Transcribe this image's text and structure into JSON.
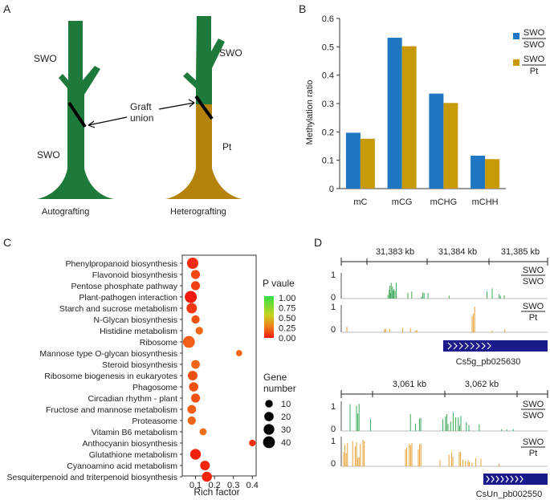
{
  "panels": {
    "a": "A",
    "b": "B",
    "c": "C",
    "d": "D"
  },
  "panel_a": {
    "auto_top_label": "SWO",
    "auto_bottom_label": "SWO",
    "hetero_top_label": "SWO",
    "hetero_bottom_label": "Pt",
    "graft_union_line1": "Graft",
    "graft_union_line2": "union",
    "auto_caption": "Autografting",
    "hetero_caption": "Heterografting"
  },
  "colors": {
    "green": "#1e7a3a",
    "brown": "#b5830c",
    "blue": "#1f77c4",
    "gold": "#c89a0a",
    "red_dot": "#e8441c",
    "navy": "#1a1a8c"
  },
  "chart_data": [
    {
      "type": "bar",
      "ylabel": "Methylation ratio",
      "ylim": [
        0,
        0.6
      ],
      "yticks": [
        "0",
        "0.1",
        "0.2",
        "0.3",
        "0.4",
        "0.5",
        "0.6"
      ],
      "categories": [
        "mC",
        "mCG",
        "mCHG",
        "mCHH"
      ],
      "series": [
        {
          "name_top": "SWO",
          "name_bottom": "SWO",
          "values": [
            0.197,
            0.532,
            0.335,
            0.116
          ]
        },
        {
          "name_top": "SWO",
          "name_bottom": "Pt",
          "values": [
            0.176,
            0.502,
            0.302,
            0.104
          ]
        }
      ]
    },
    {
      "type": "scatter",
      "xlabel": "Rich factor",
      "xlim": [
        0.03,
        0.42
      ],
      "xticks": [
        "0.1",
        "0.2",
        "0.3",
        "0.4"
      ],
      "pathways": [
        {
          "name": "Phenylpropanoid biosynthesis",
          "rich": 0.085,
          "p": 0.04,
          "genes": 35
        },
        {
          "name": "Flavonoid biosynthesis",
          "rich": 0.1,
          "p": 0.12,
          "genes": 18
        },
        {
          "name": "Pentose phosphate pathway",
          "rich": 0.1,
          "p": 0.1,
          "genes": 18
        },
        {
          "name": "Plant-pathogen interaction",
          "rich": 0.075,
          "p": 0.0,
          "genes": 42
        },
        {
          "name": "Starch and sucrose metabolism",
          "rich": 0.08,
          "p": 0.08,
          "genes": 28
        },
        {
          "name": "N-Glycan biosynthesis",
          "rich": 0.1,
          "p": 0.15,
          "genes": 14
        },
        {
          "name": "Histidine metabolism",
          "rich": 0.12,
          "p": 0.2,
          "genes": 10
        },
        {
          "name": "Ribosome",
          "rich": 0.065,
          "p": 0.18,
          "genes": 40
        },
        {
          "name": "Mannose type O-glycan biosynthesis",
          "rich": 0.33,
          "p": 0.2,
          "genes": 5
        },
        {
          "name": "Steroid biosynthesis",
          "rich": 0.1,
          "p": 0.2,
          "genes": 16
        },
        {
          "name": "Ribosome biogenesis in eukaryotes",
          "rich": 0.085,
          "p": 0.15,
          "genes": 22
        },
        {
          "name": "Phagosome",
          "rich": 0.09,
          "p": 0.15,
          "genes": 20
        },
        {
          "name": "Circadian rhythm - plant",
          "rich": 0.1,
          "p": 0.15,
          "genes": 18
        },
        {
          "name": "Fructose and mannose metabolism",
          "rich": 0.08,
          "p": 0.18,
          "genes": 16
        },
        {
          "name": "Proteasome",
          "rich": 0.08,
          "p": 0.2,
          "genes": 14
        },
        {
          "name": "Vitamin B6 metabolism",
          "rich": 0.14,
          "p": 0.22,
          "genes": 8
        },
        {
          "name": "Anthocyanin biosynthesis",
          "rich": 0.4,
          "p": 0.05,
          "genes": 6
        },
        {
          "name": "Glutathione metabolism",
          "rich": 0.1,
          "p": 0.02,
          "genes": 30
        },
        {
          "name": "Cyanoamino acid metabolism",
          "rich": 0.15,
          "p": 0.03,
          "genes": 22
        },
        {
          "name": "Sesquiterpenoid and triterpenoid biosynthesis",
          "rich": 0.16,
          "p": 0.02,
          "genes": 25
        }
      ],
      "legend_color_title": "P vaule",
      "legend_color_ticks": [
        "1.00",
        "0.75",
        "0.50",
        "0.25",
        "0.00"
      ],
      "legend_size_title_line1": "Gene",
      "legend_size_title_line2": "number",
      "legend_sizes": [
        {
          "label": "10",
          "genes": 10
        },
        {
          "label": "20",
          "genes": 20
        },
        {
          "label": "30",
          "genes": 30
        },
        {
          "label": "40",
          "genes": 40
        }
      ]
    },
    {
      "type": "genome-track",
      "region1": {
        "ticks": [
          "31,383 kb",
          "31,384 kb",
          "31,385 kb"
        ],
        "track_label_top": [
          "SWO",
          "SWO"
        ],
        "track_label_bottom": [
          "SWO",
          "Pt"
        ],
        "ymax": "1",
        "ymin": "0",
        "gene_name": "Cs5g_pb025630"
      },
      "region2": {
        "ticks": [
          "3,061 kb",
          "3,062 kb"
        ],
        "track_label_top": [
          "SWO",
          "SWO"
        ],
        "track_label_bottom": [
          "SWO",
          "Pt"
        ],
        "ymax": "1",
        "ymin": "0",
        "gene_name": "CsUn_pb002550"
      }
    }
  ]
}
